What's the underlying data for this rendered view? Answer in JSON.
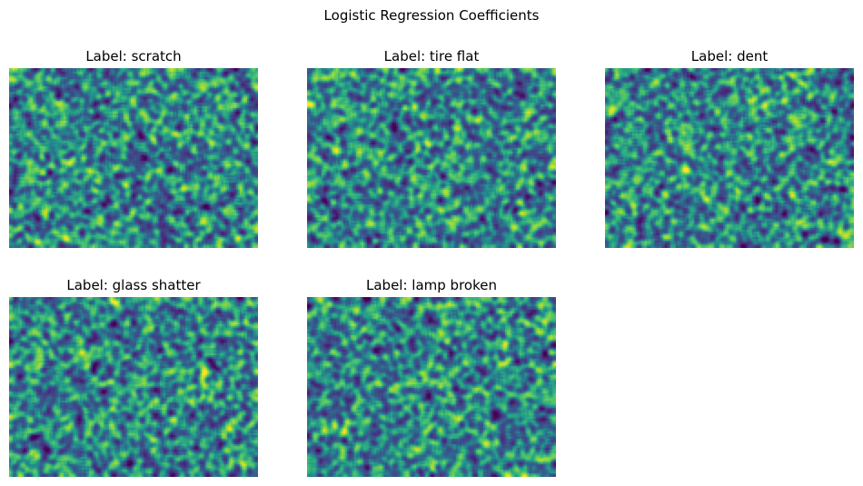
{
  "chart_data": {
    "type": "heatmap",
    "title": "Logistic Regression Coefficients",
    "colormap": "viridis",
    "grid": false,
    "axes_visible": false,
    "layout": {
      "rows": 2,
      "cols": 3
    },
    "panels": [
      {
        "title": "Label: scratch"
      },
      {
        "title": "Label: tire flat"
      },
      {
        "title": "Label: dent"
      },
      {
        "title": "Label: glass shatter"
      },
      {
        "title": "Label: lamp broken"
      }
    ]
  }
}
